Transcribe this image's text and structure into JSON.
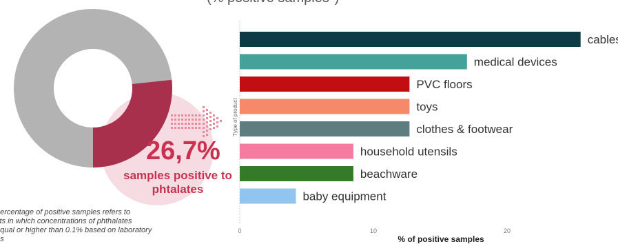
{
  "page_title": "(% positive samples*)",
  "highlight": {
    "value": "26,7%",
    "caption": "samples positive to phtalates",
    "donut_positive_fraction": 0.267,
    "colors": {
      "positive": "#a8304d",
      "negative": "#b3b3b3",
      "halo": "#f7dbe3",
      "arrow": "#e88a9c"
    }
  },
  "footnote": "percentage of positive samples refers to\ncts in which concentrations of phthalates\nequal or higher than 0.1% based on laboratory\nes",
  "chart_data": {
    "type": "bar",
    "orientation": "horizontal",
    "categories": [
      "cables",
      "medical devices",
      "PVC floors",
      "toys",
      "clothes & footwear",
      "household utensils",
      "beachware",
      "baby equipment"
    ],
    "values": [
      25.5,
      17,
      12.7,
      12.7,
      12.7,
      8.5,
      8.5,
      4.2
    ],
    "colors": [
      "#0e3a45",
      "#45a29a",
      "#c20e12",
      "#f5896a",
      "#5e7d80",
      "#f57ba0",
      "#357a29",
      "#91c4ef"
    ],
    "xlabel": "% of positive samples",
    "ylabel": "Type of product",
    "xticks": [
      0,
      10,
      20
    ],
    "xlim": [
      0,
      26
    ],
    "grid": false
  }
}
